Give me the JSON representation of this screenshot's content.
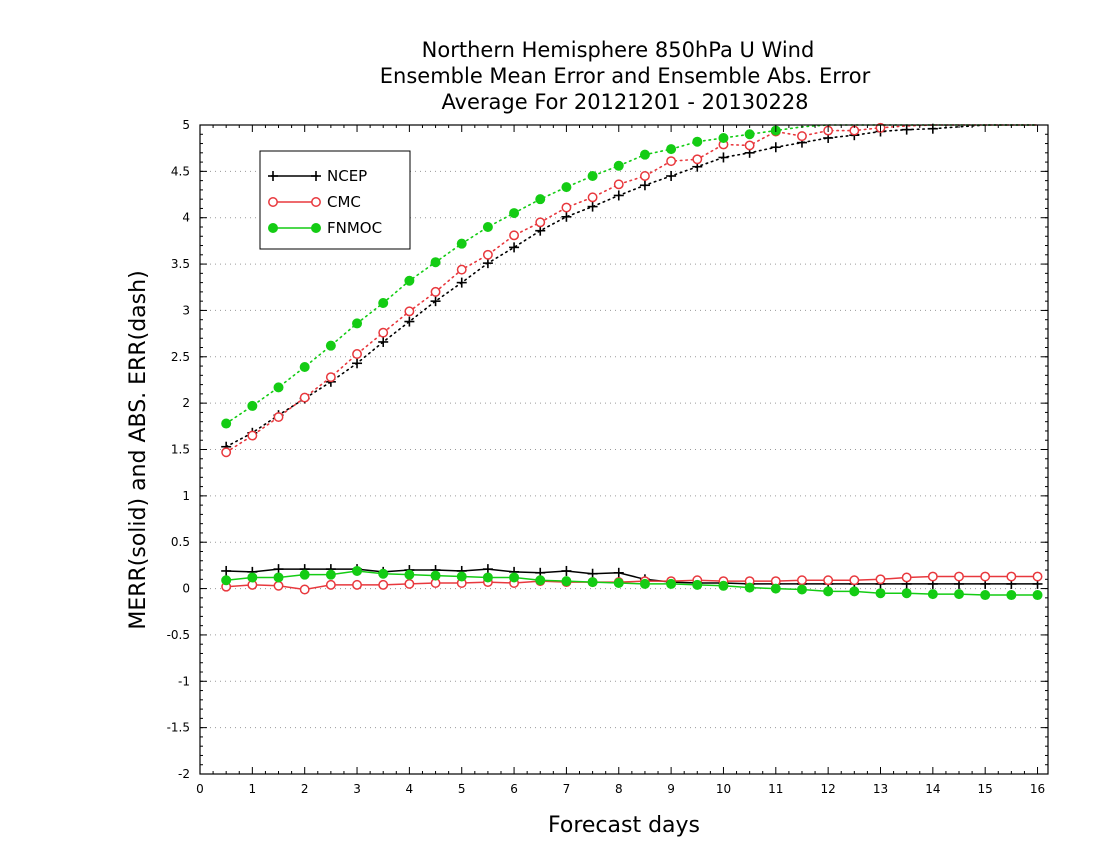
{
  "chart_data": {
    "type": "line",
    "title": [
      "Northern Hemisphere 850hPa U Wind",
      "Ensemble Mean Error and Ensemble Abs. Error",
      "Average For 20121201 - 20130228"
    ],
    "xlabel": "Forecast days",
    "ylabel": "MERR(solid) and ABS. ERR(dash)",
    "xlim": [
      0,
      16.2
    ],
    "ylim": [
      -2,
      5
    ],
    "x_ticks": [
      "0",
      "1",
      "2",
      "3",
      "4",
      "5",
      "6",
      "7",
      "8",
      "9",
      "10",
      "11",
      "12",
      "13",
      "14",
      "15",
      "16"
    ],
    "y_ticks": [
      "5",
      "4.5",
      "4",
      "3.5",
      "3",
      "2.5",
      "2",
      "1.5",
      "1",
      "0.5",
      "0",
      "-0.5",
      "-1",
      "-1.5",
      "-2"
    ],
    "grid": "horizontal dotted",
    "legend_position": "top-left",
    "x": [
      0.5,
      1,
      1.5,
      2,
      2.5,
      3,
      3.5,
      4,
      4.5,
      5,
      5.5,
      6,
      6.5,
      7,
      7.5,
      8,
      8.5,
      9,
      9.5,
      10,
      10.5,
      11,
      11.5,
      12,
      12.5,
      13,
      13.5,
      14,
      14.5,
      15,
      15.5,
      16
    ],
    "series": [
      {
        "name": "NCEP",
        "color": "#000000",
        "marker": "plus",
        "mean_error": [
          0.19,
          0.18,
          0.21,
          0.21,
          0.21,
          0.21,
          0.18,
          0.2,
          0.2,
          0.19,
          0.21,
          0.18,
          0.17,
          0.19,
          0.16,
          0.17,
          0.1,
          0.07,
          0.06,
          0.06,
          0.05,
          0.05,
          0.05,
          0.05,
          0.05,
          0.05,
          0.05,
          0.05,
          0.05,
          0.05,
          0.05,
          0.05
        ],
        "abs_error": [
          1.53,
          1.68,
          1.87,
          2.05,
          2.23,
          2.43,
          2.66,
          2.88,
          3.1,
          3.3,
          3.51,
          3.68,
          3.86,
          4.01,
          4.12,
          4.24,
          4.35,
          4.45,
          4.55,
          4.65,
          4.7,
          4.76,
          4.81,
          4.86,
          4.89,
          4.93,
          4.95,
          4.96,
          4.98,
          5.0,
          5.0,
          5.0
        ]
      },
      {
        "name": "CMC",
        "color": "#e8383d",
        "marker": "open-circle",
        "mean_error": [
          0.02,
          0.04,
          0.03,
          -0.01,
          0.04,
          0.04,
          0.04,
          0.05,
          0.06,
          0.06,
          0.07,
          0.06,
          0.08,
          0.07,
          0.07,
          0.07,
          0.08,
          0.08,
          0.09,
          0.08,
          0.08,
          0.08,
          0.09,
          0.09,
          0.09,
          0.1,
          0.12,
          0.13,
          0.13,
          0.13,
          0.13,
          0.13
        ],
        "abs_error": [
          1.47,
          1.65,
          1.85,
          2.06,
          2.28,
          2.53,
          2.76,
          2.99,
          3.2,
          3.44,
          3.6,
          3.81,
          3.95,
          4.11,
          4.22,
          4.36,
          4.45,
          4.61,
          4.63,
          4.79,
          4.78,
          4.93,
          4.88,
          4.94,
          4.94,
          4.97,
          4.99,
          5.0,
          5.0,
          5.0,
          5.0,
          5.0
        ]
      },
      {
        "name": "FNMOC",
        "color": "#14cc14",
        "marker": "filled-circle",
        "mean_error": [
          0.09,
          0.12,
          0.12,
          0.15,
          0.15,
          0.19,
          0.16,
          0.15,
          0.14,
          0.13,
          0.12,
          0.12,
          0.09,
          0.08,
          0.07,
          0.06,
          0.05,
          0.05,
          0.04,
          0.03,
          0.01,
          0.0,
          -0.01,
          -0.03,
          -0.03,
          -0.05,
          -0.05,
          -0.06,
          -0.06,
          -0.07,
          -0.07,
          -0.07
        ],
        "abs_error": [
          1.78,
          1.97,
          2.17,
          2.39,
          2.62,
          2.86,
          3.08,
          3.32,
          3.52,
          3.72,
          3.9,
          4.05,
          4.2,
          4.33,
          4.45,
          4.56,
          4.68,
          4.74,
          4.82,
          4.86,
          4.9,
          4.94,
          4.98,
          5.0,
          5.0,
          5.0,
          5.0,
          5.0,
          5.0,
          5.0,
          5.0,
          5.0
        ]
      }
    ]
  }
}
